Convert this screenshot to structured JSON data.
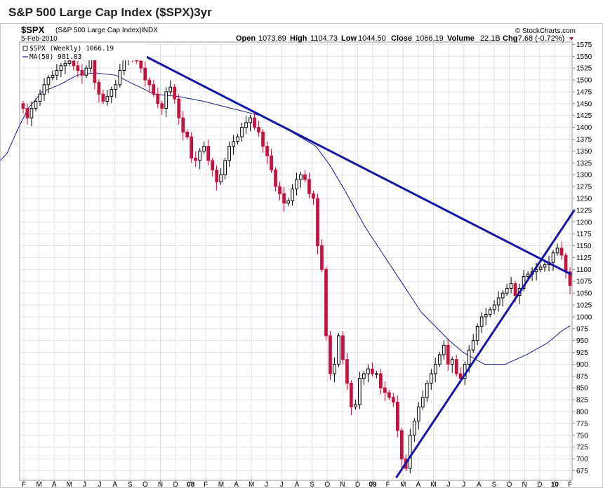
{
  "page": {
    "title": "S&P 500 Large Cap Index ($SPX)3yr"
  },
  "chart_data": {
    "type": "candlestick",
    "symbol": "$SPX",
    "name": "(S&P 500 Large Cap Index)",
    "exchange": "INDX",
    "date": "5-Feb-2010",
    "watermark": "© StockCharts.com",
    "ohlc_header": {
      "open_label": "Open",
      "open": "1073.89",
      "high_label": "High",
      "high": "1104.73",
      "low_label": "Low",
      "low": "1044.50",
      "close_label": "Close",
      "close": "1066.19",
      "volume_label": "Volume",
      "volume": "22.1B",
      "chg_label": "Chg",
      "chg": "-7.68 (-0.72%)"
    },
    "legend": [
      {
        "text": "$SPX (Weekly) 1066.19",
        "color": "#222222"
      },
      {
        "text": "MA(50) 981.03",
        "color": "#1a1a8c"
      }
    ],
    "ylim": [
      655,
      1580
    ],
    "yticks": [
      675,
      700,
      725,
      750,
      775,
      800,
      825,
      850,
      875,
      900,
      925,
      950,
      975,
      1000,
      1025,
      1050,
      1075,
      1100,
      1125,
      1150,
      1175,
      1200,
      1225,
      1250,
      1275,
      1300,
      1325,
      1350,
      1375,
      1400,
      1425,
      1450,
      1475,
      1500,
      1525,
      1550,
      1575
    ],
    "x_months": [
      "F",
      "M",
      "A",
      "M",
      "J",
      "J",
      "A",
      "S",
      "O",
      "N",
      "D",
      "08",
      "F",
      "M",
      "A",
      "M",
      "J",
      "J",
      "A",
      "S",
      "O",
      "N",
      "D",
      "09",
      "F",
      "M",
      "A",
      "M",
      "J",
      "J",
      "A",
      "S",
      "O",
      "N",
      "D",
      "10",
      "F"
    ],
    "week_series": [
      1440,
      1420,
      1440,
      1455,
      1470,
      1490,
      1505,
      1510,
      1520,
      1530,
      1535,
      1540,
      1530,
      1520,
      1510,
      1525,
      1550,
      1495,
      1470,
      1455,
      1465,
      1480,
      1490,
      1520,
      1545,
      1560,
      1555,
      1540,
      1525,
      1500,
      1490,
      1470,
      1450,
      1440,
      1475,
      1485,
      1460,
      1420,
      1390,
      1380,
      1335,
      1330,
      1350,
      1360,
      1330,
      1310,
      1285,
      1300,
      1330,
      1360,
      1370,
      1380,
      1400,
      1410,
      1420,
      1400,
      1390,
      1360,
      1340,
      1310,
      1275,
      1260,
      1240,
      1245,
      1270,
      1290,
      1300,
      1290,
      1260,
      1250,
      1150,
      1100,
      960,
      880,
      900,
      960,
      910,
      860,
      810,
      815,
      870,
      880,
      890,
      880,
      880,
      850,
      840,
      830,
      820,
      760,
      700,
      680,
      750,
      780,
      810,
      830,
      860,
      880,
      900,
      920,
      940,
      900,
      910,
      880,
      870,
      900,
      930,
      950,
      980,
      1000,
      1005,
      1015,
      1025,
      1040,
      1050,
      1060,
      1070,
      1045,
      1060,
      1085,
      1090,
      1095,
      1100,
      1105,
      1110,
      1115,
      1135,
      1145,
      1130,
      1095,
      1066
    ],
    "ma50": [
      [
        0,
        1330
      ],
      [
        10,
        1345
      ],
      [
        25,
        1395
      ],
      [
        40,
        1440
      ],
      [
        60,
        1475
      ],
      [
        85,
        1490
      ],
      [
        110,
        1510
      ],
      [
        135,
        1515
      ],
      [
        165,
        1510
      ],
      [
        185,
        1495
      ],
      [
        220,
        1470
      ],
      [
        255,
        1465
      ],
      [
        290,
        1455
      ],
      [
        330,
        1440
      ],
      [
        370,
        1425
      ],
      [
        410,
        1395
      ],
      [
        450,
        1360
      ],
      [
        470,
        1320
      ],
      [
        490,
        1270
      ],
      [
        520,
        1190
      ],
      [
        560,
        1100
      ],
      [
        600,
        1010
      ],
      [
        640,
        950
      ],
      [
        660,
        925
      ],
      [
        690,
        900
      ],
      [
        720,
        900
      ],
      [
        750,
        920
      ],
      [
        780,
        945
      ],
      [
        800,
        970
      ],
      [
        812,
        981
      ]
    ],
    "trendlines": [
      {
        "points": [
          [
            190,
            1563
          ],
          [
            813,
            1090
          ]
        ],
        "color": "#1515a8"
      },
      {
        "points": [
          [
            565,
            662
          ],
          [
            818,
            1225
          ]
        ],
        "color": "#1515a8"
      }
    ]
  }
}
